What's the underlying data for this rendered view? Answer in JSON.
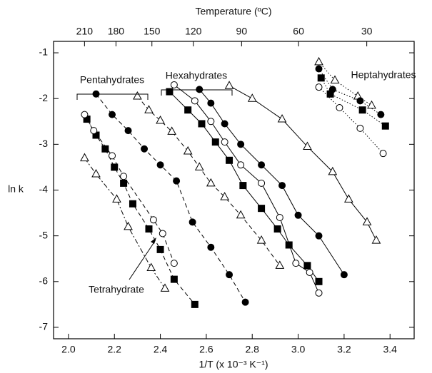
{
  "chart_data": {
    "type": "scatter",
    "x_label": "1/T (x 10⁻³ K⁻¹)",
    "y_label": "ln k",
    "x2_label": "Temperature (ºC)",
    "xlim": [
      1.935,
      3.505
    ],
    "ylim": [
      -7.25,
      -0.75
    ],
    "xticks": [
      {
        "value": 2,
        "label": "2.0"
      },
      2.2,
      2.4,
      2.6,
      2.8,
      {
        "value": 3,
        "label": "3.0"
      },
      3.2,
      3.4
    ],
    "yticks": [
      -1,
      -2,
      -3,
      -4,
      -5,
      -6,
      -7
    ],
    "x2_scale": "reciprocal-kelvin",
    "x2ticks": [
      210,
      180,
      150,
      120,
      90,
      60,
      30
    ],
    "groups": [
      {
        "label": "Pentahydrates",
        "line": "dashed",
        "series": [
          {
            "marker": "filled-circle",
            "x": [
              2.12,
              2.19,
              2.26,
              2.33,
              2.4,
              2.47,
              2.54,
              2.62,
              2.7,
              2.77
            ],
            "values": [
              -1.9,
              -2.35,
              -2.7,
              -3.1,
              -3.45,
              -3.8,
              -4.7,
              -5.25,
              -5.85,
              -6.45
            ]
          },
          {
            "marker": "open-triangle",
            "x": [
              2.3,
              2.35,
              2.4,
              2.45,
              2.52,
              2.57,
              2.62,
              2.68,
              2.75,
              2.84,
              2.92
            ],
            "values": [
              -1.95,
              -2.25,
              -2.48,
              -2.72,
              -3.15,
              -3.5,
              -3.85,
              -4.15,
              -4.55,
              -5.1,
              -5.65
            ]
          },
          {
            "marker": "filled-square",
            "x": [
              2.08,
              2.12,
              2.16,
              2.2,
              2.24,
              2.28,
              2.35,
              2.4,
              2.46,
              2.55
            ],
            "values": [
              -2.45,
              -2.8,
              -3.1,
              -3.5,
              -3.85,
              -4.3,
              -4.85,
              -5.3,
              -5.95,
              -6.5
            ]
          },
          {
            "marker": "open-circle",
            "x": [
              2.07,
              2.11,
              2.19,
              2.24,
              2.37,
              2.41,
              2.46
            ],
            "values": [
              -2.35,
              -2.7,
              -3.25,
              -3.7,
              -4.65,
              -4.95,
              -5.6
            ]
          }
        ]
      },
      {
        "label": "Tetrahydrate",
        "line": "dashdot",
        "series": [
          {
            "marker": "open-triangle",
            "x": [
              2.07,
              2.12,
              2.21,
              2.26,
              2.36,
              2.42
            ],
            "values": [
              -3.3,
              -3.65,
              -4.2,
              -4.8,
              -5.7,
              -6.15
            ]
          }
        ]
      },
      {
        "label": "Hexahydrates",
        "line": "solid",
        "series": [
          {
            "marker": "open-circle",
            "x": [
              2.46,
              2.55,
              2.62,
              2.68,
              2.75,
              2.84,
              2.92,
              2.99,
              3.05,
              3.09
            ],
            "values": [
              -1.7,
              -2.05,
              -2.5,
              -2.95,
              -3.45,
              -3.85,
              -4.6,
              -5.6,
              -5.8,
              -6.25
            ]
          },
          {
            "marker": "filled-circle",
            "x": [
              2.57,
              2.62,
              2.68,
              2.75,
              2.84,
              2.93,
              3.0,
              3.09,
              3.2
            ],
            "values": [
              -1.8,
              -2.1,
              -2.55,
              -3.0,
              -3.45,
              -3.9,
              -4.55,
              -5.0,
              -5.85
            ]
          },
          {
            "marker": "filled-square",
            "x": [
              2.44,
              2.52,
              2.58,
              2.64,
              2.7,
              2.76,
              2.84,
              2.91,
              2.96,
              3.04,
              3.09
            ],
            "values": [
              -1.85,
              -2.25,
              -2.55,
              -2.95,
              -3.35,
              -3.9,
              -4.4,
              -4.85,
              -5.2,
              -5.65,
              -6.0
            ]
          },
          {
            "marker": "open-triangle",
            "x": [
              2.7,
              2.8,
              2.93,
              3.04,
              3.15,
              3.22,
              3.3,
              3.34
            ],
            "values": [
              -1.72,
              -2.0,
              -2.45,
              -3.05,
              -3.6,
              -4.2,
              -4.7,
              -5.1
            ]
          }
        ]
      },
      {
        "label": "Heptahydrates",
        "line": "dotted",
        "series": [
          {
            "marker": "open-triangle",
            "x": [
              3.09,
              3.16,
              3.26,
              3.32
            ],
            "values": [
              -1.2,
              -1.6,
              -1.95,
              -2.15
            ]
          },
          {
            "marker": "filled-circle",
            "x": [
              3.09,
              3.15,
              3.27,
              3.36
            ],
            "values": [
              -1.35,
              -1.8,
              -2.05,
              -2.35
            ]
          },
          {
            "marker": "filled-square",
            "x": [
              3.1,
              3.14,
              3.28,
              3.38
            ],
            "values": [
              -1.55,
              -1.9,
              -2.25,
              -2.6
            ]
          },
          {
            "marker": "open-circle",
            "x": [
              3.09,
              3.18,
              3.27,
              3.37
            ],
            "values": [
              -1.75,
              -2.2,
              -2.65,
              -3.2
            ]
          }
        ]
      }
    ]
  }
}
